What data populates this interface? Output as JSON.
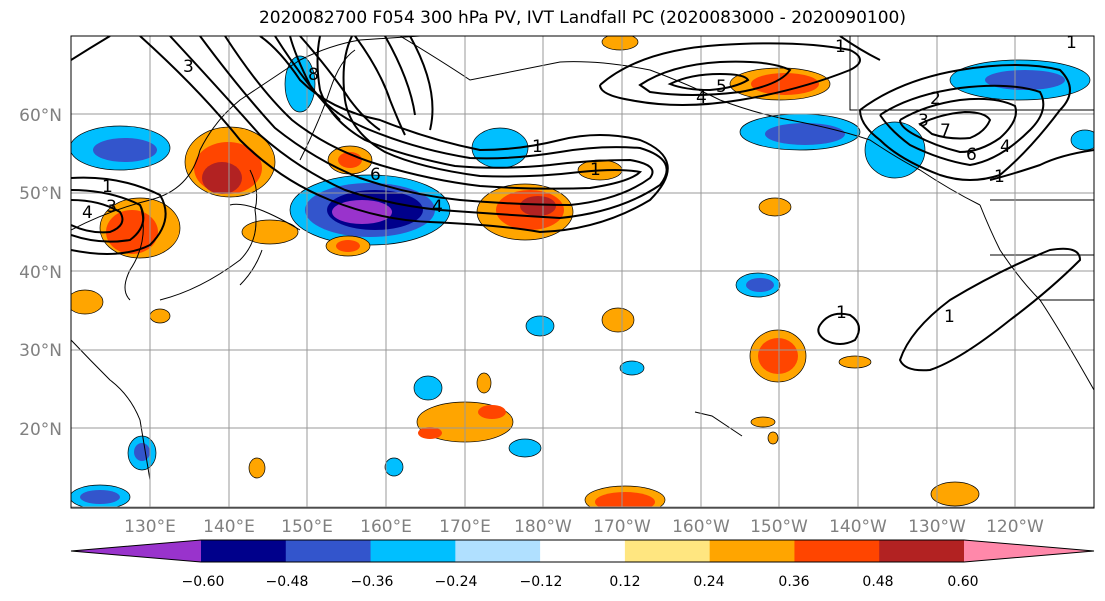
{
  "title": "2020082700 F054 300 hPa PV, IVT Landfall PC (2020083000 - 2020090100)",
  "latitude_labels": [
    "60°N",
    "50°N",
    "40°N",
    "30°N",
    "20°N"
  ],
  "longitude_labels": [
    "130°E",
    "140°E",
    "150°E",
    "160°E",
    "170°E",
    "180°W",
    "170°W",
    "160°W",
    "150°W",
    "140°W",
    "130°W",
    "120°W"
  ],
  "contour_labels": [
    "8",
    "6",
    "4",
    "3",
    "1",
    "1",
    "1",
    "1",
    "1",
    "4",
    "5",
    "2",
    "3",
    "7",
    "6",
    "4",
    "3",
    "1",
    "1",
    "1",
    "4"
  ],
  "colorbar": {
    "colors": [
      "#9933cc",
      "#00008b",
      "#3355cc",
      "#00bfff",
      "#b0e0ff",
      "#ffffff",
      "#ffe680",
      "#ffa500",
      "#ff4500",
      "#b22222",
      "#ff88aa"
    ],
    "tick_labels": [
      "−0.60",
      "−0.48",
      "−0.36",
      "−0.24",
      "−0.12",
      "0.12",
      "0.24",
      "0.36",
      "0.48",
      "0.60"
    ]
  }
}
